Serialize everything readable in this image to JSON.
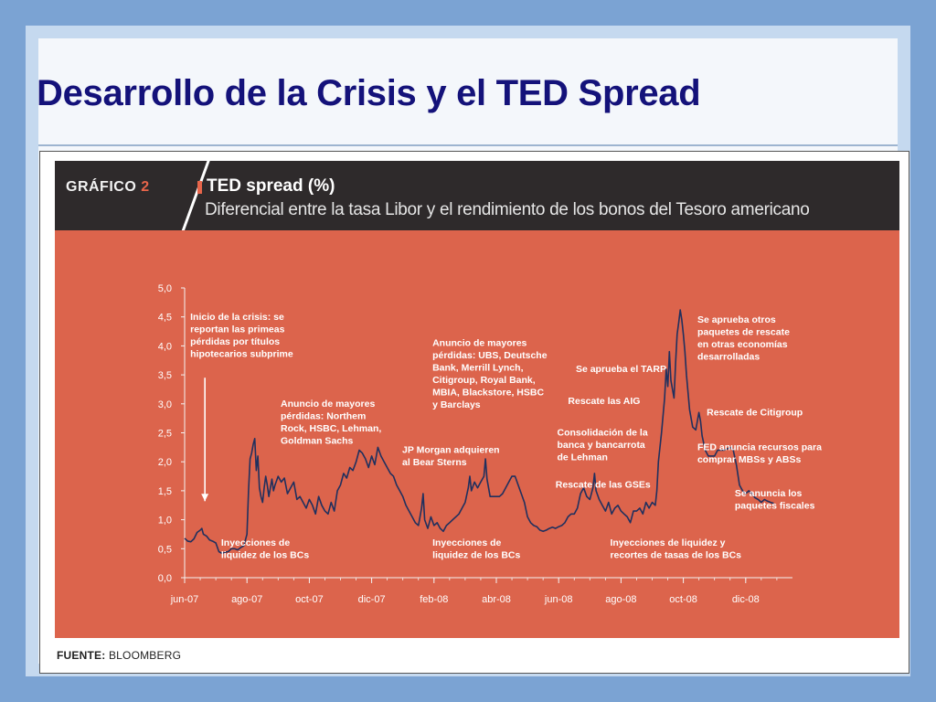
{
  "slide": {
    "title": "Desarrollo de la Crisis y el TED Spread"
  },
  "figure": {
    "label_prefix": "GRÁFICO",
    "label_number": "2",
    "title": "TED spread (%)",
    "subtitle": "Diferencial entre la tasa Libor y el rendimiento de los bonos del Tesoro americano",
    "source_label": "FUENTE:",
    "source_value": "BLOOMBERG"
  },
  "colors": {
    "background": "#7ba3d3",
    "title": "#14127a",
    "plot_bg": "#dc644c",
    "header_bg": "#2e2a2b",
    "line": "#20305e",
    "accent": "#e8654a"
  },
  "chart_data": {
    "type": "line",
    "title": "TED spread (%)",
    "subtitle": "Diferencial entre la tasa Libor y el rendimiento de los bonos del Tesoro americano",
    "xlabel": "",
    "ylabel": "",
    "ylim": [
      0,
      5
    ],
    "yticks": [
      "0,0",
      "0,5",
      "1,0",
      "1,5",
      "2,0",
      "2,5",
      "3,0",
      "3,5",
      "4,0",
      "4,5",
      "5,0"
    ],
    "xticks": [
      {
        "label": "jun-07",
        "m": 0
      },
      {
        "label": "ago-07",
        "m": 2
      },
      {
        "label": "oct-07",
        "m": 4
      },
      {
        "label": "dic-07",
        "m": 6
      },
      {
        "label": "feb-08",
        "m": 8
      },
      {
        "label": "abr-08",
        "m": 10
      },
      {
        "label": "jun-08",
        "m": 12
      },
      {
        "label": "ago-08",
        "m": 14
      },
      {
        "label": "oct-08",
        "m": 16
      },
      {
        "label": "dic-08",
        "m": 18
      }
    ],
    "series": [
      {
        "name": "",
        "points": [
          [
            0.0,
            0.68
          ],
          [
            0.1,
            0.63
          ],
          [
            0.2,
            0.62
          ],
          [
            0.3,
            0.67
          ],
          [
            0.4,
            0.78
          ],
          [
            0.5,
            0.82
          ],
          [
            0.55,
            0.85
          ],
          [
            0.6,
            0.75
          ],
          [
            0.7,
            0.72
          ],
          [
            0.8,
            0.65
          ],
          [
            0.9,
            0.63
          ],
          [
            1.0,
            0.6
          ],
          [
            1.1,
            0.45
          ],
          [
            1.2,
            0.42
          ],
          [
            1.3,
            0.44
          ],
          [
            1.4,
            0.45
          ],
          [
            1.5,
            0.5
          ],
          [
            1.6,
            0.5
          ],
          [
            1.7,
            0.48
          ],
          [
            1.8,
            0.52
          ],
          [
            1.9,
            0.55
          ],
          [
            2.0,
            0.75
          ],
          [
            2.05,
            1.5
          ],
          [
            2.1,
            2.05
          ],
          [
            2.15,
            2.15
          ],
          [
            2.2,
            2.3
          ],
          [
            2.25,
            2.4
          ],
          [
            2.3,
            1.85
          ],
          [
            2.35,
            2.1
          ],
          [
            2.4,
            1.55
          ],
          [
            2.45,
            1.4
          ],
          [
            2.5,
            1.3
          ],
          [
            2.55,
            1.55
          ],
          [
            2.6,
            1.75
          ],
          [
            2.65,
            1.6
          ],
          [
            2.7,
            1.4
          ],
          [
            2.75,
            1.55
          ],
          [
            2.8,
            1.7
          ],
          [
            2.85,
            1.5
          ],
          [
            2.9,
            1.6
          ],
          [
            3.0,
            1.75
          ],
          [
            3.1,
            1.65
          ],
          [
            3.2,
            1.72
          ],
          [
            3.3,
            1.45
          ],
          [
            3.4,
            1.55
          ],
          [
            3.5,
            1.65
          ],
          [
            3.6,
            1.35
          ],
          [
            3.7,
            1.4
          ],
          [
            3.8,
            1.3
          ],
          [
            3.9,
            1.2
          ],
          [
            4.0,
            1.35
          ],
          [
            4.1,
            1.25
          ],
          [
            4.2,
            1.1
          ],
          [
            4.3,
            1.4
          ],
          [
            4.4,
            1.25
          ],
          [
            4.5,
            1.15
          ],
          [
            4.6,
            1.1
          ],
          [
            4.7,
            1.3
          ],
          [
            4.8,
            1.15
          ],
          [
            4.9,
            1.5
          ],
          [
            5.0,
            1.6
          ],
          [
            5.1,
            1.8
          ],
          [
            5.2,
            1.72
          ],
          [
            5.3,
            1.9
          ],
          [
            5.4,
            1.85
          ],
          [
            5.5,
            2.0
          ],
          [
            5.6,
            2.2
          ],
          [
            5.7,
            2.15
          ],
          [
            5.8,
            2.05
          ],
          [
            5.9,
            1.9
          ],
          [
            6.0,
            2.1
          ],
          [
            6.1,
            1.95
          ],
          [
            6.2,
            2.25
          ],
          [
            6.3,
            2.1
          ],
          [
            6.4,
            2.0
          ],
          [
            6.5,
            1.9
          ],
          [
            6.6,
            1.8
          ],
          [
            6.7,
            1.75
          ],
          [
            6.8,
            1.6
          ],
          [
            6.9,
            1.5
          ],
          [
            7.0,
            1.4
          ],
          [
            7.1,
            1.25
          ],
          [
            7.2,
            1.15
          ],
          [
            7.3,
            1.05
          ],
          [
            7.4,
            0.95
          ],
          [
            7.5,
            0.9
          ],
          [
            7.6,
            1.2
          ],
          [
            7.65,
            1.45
          ],
          [
            7.7,
            1.0
          ],
          [
            7.8,
            0.85
          ],
          [
            7.9,
            1.05
          ],
          [
            8.0,
            0.9
          ],
          [
            8.1,
            0.95
          ],
          [
            8.2,
            0.85
          ],
          [
            8.3,
            0.8
          ],
          [
            8.4,
            0.9
          ],
          [
            8.5,
            0.95
          ],
          [
            8.6,
            1.0
          ],
          [
            8.7,
            1.05
          ],
          [
            8.8,
            1.1
          ],
          [
            8.9,
            1.2
          ],
          [
            9.0,
            1.3
          ],
          [
            9.1,
            1.55
          ],
          [
            9.15,
            1.75
          ],
          [
            9.2,
            1.5
          ],
          [
            9.3,
            1.65
          ],
          [
            9.4,
            1.55
          ],
          [
            9.5,
            1.65
          ],
          [
            9.6,
            1.75
          ],
          [
            9.65,
            2.05
          ],
          [
            9.7,
            1.7
          ],
          [
            9.8,
            1.4
          ],
          [
            9.9,
            1.4
          ],
          [
            10.0,
            1.4
          ],
          [
            10.1,
            1.4
          ],
          [
            10.2,
            1.45
          ],
          [
            10.3,
            1.55
          ],
          [
            10.4,
            1.65
          ],
          [
            10.5,
            1.75
          ],
          [
            10.6,
            1.75
          ],
          [
            10.7,
            1.6
          ],
          [
            10.8,
            1.45
          ],
          [
            10.9,
            1.3
          ],
          [
            11.0,
            1.05
          ],
          [
            11.1,
            0.95
          ],
          [
            11.2,
            0.9
          ],
          [
            11.3,
            0.88
          ],
          [
            11.4,
            0.82
          ],
          [
            11.5,
            0.8
          ],
          [
            11.6,
            0.82
          ],
          [
            11.7,
            0.85
          ],
          [
            11.8,
            0.87
          ],
          [
            11.9,
            0.85
          ],
          [
            12.0,
            0.88
          ],
          [
            12.1,
            0.9
          ],
          [
            12.2,
            0.95
          ],
          [
            12.3,
            1.05
          ],
          [
            12.4,
            1.1
          ],
          [
            12.5,
            1.1
          ],
          [
            12.6,
            1.2
          ],
          [
            12.7,
            1.45
          ],
          [
            12.8,
            1.55
          ],
          [
            12.9,
            1.4
          ],
          [
            13.0,
            1.35
          ],
          [
            13.1,
            1.55
          ],
          [
            13.15,
            1.8
          ],
          [
            13.2,
            1.5
          ],
          [
            13.3,
            1.35
          ],
          [
            13.4,
            1.25
          ],
          [
            13.5,
            1.15
          ],
          [
            13.6,
            1.3
          ],
          [
            13.7,
            1.1
          ],
          [
            13.8,
            1.2
          ],
          [
            13.9,
            1.25
          ],
          [
            14.0,
            1.15
          ],
          [
            14.1,
            1.1
          ],
          [
            14.2,
            1.05
          ],
          [
            14.3,
            0.95
          ],
          [
            14.4,
            1.15
          ],
          [
            14.5,
            1.15
          ],
          [
            14.6,
            1.2
          ],
          [
            14.7,
            1.1
          ],
          [
            14.8,
            1.3
          ],
          [
            14.9,
            1.2
          ],
          [
            15.0,
            1.3
          ],
          [
            15.1,
            1.25
          ],
          [
            15.15,
            1.5
          ],
          [
            15.2,
            2.0
          ],
          [
            15.3,
            2.5
          ],
          [
            15.4,
            3.1
          ],
          [
            15.45,
            3.6
          ],
          [
            15.5,
            3.3
          ],
          [
            15.55,
            3.9
          ],
          [
            15.6,
            3.4
          ],
          [
            15.7,
            3.1
          ],
          [
            15.75,
            3.7
          ],
          [
            15.8,
            4.2
          ],
          [
            15.85,
            4.4
          ],
          [
            15.9,
            4.62
          ],
          [
            15.95,
            4.45
          ],
          [
            16.0,
            4.2
          ],
          [
            16.05,
            3.9
          ],
          [
            16.1,
            3.5
          ],
          [
            16.15,
            3.2
          ],
          [
            16.2,
            2.9
          ],
          [
            16.3,
            2.6
          ],
          [
            16.4,
            2.55
          ],
          [
            16.5,
            2.85
          ],
          [
            16.55,
            2.7
          ],
          [
            16.6,
            2.45
          ],
          [
            16.7,
            2.2
          ],
          [
            16.8,
            2.1
          ],
          [
            16.9,
            2.1
          ],
          [
            17.0,
            2.1
          ],
          [
            17.1,
            2.2
          ],
          [
            17.2,
            2.2
          ],
          [
            17.3,
            2.2
          ],
          [
            17.4,
            2.22
          ],
          [
            17.5,
            2.25
          ],
          [
            17.6,
            2.2
          ],
          [
            17.7,
            1.95
          ],
          [
            17.8,
            1.6
          ],
          [
            17.9,
            1.5
          ],
          [
            18.0,
            1.45
          ],
          [
            18.1,
            1.5
          ],
          [
            18.2,
            1.45
          ],
          [
            18.3,
            1.38
          ],
          [
            18.4,
            1.35
          ],
          [
            18.5,
            1.3
          ],
          [
            18.6,
            1.35
          ],
          [
            18.7,
            1.32
          ],
          [
            18.8,
            1.3
          ],
          [
            18.9,
            1.28
          ]
        ]
      }
    ],
    "annotations": [
      {
        "lines": [
          "Inicio de la crisis: se",
          "reportan las primeas",
          "pérdidas por títulos",
          "hipotecarios subprime"
        ],
        "m": 0.18,
        "v": 4.45,
        "arrow": true
      },
      {
        "lines": [
          "Anuncio de mayores",
          "pérdidas: Northem",
          "Rock, HSBC, Lehman,",
          "Goldman Sachs"
        ],
        "m": 3.08,
        "v": 2.95
      },
      {
        "lines": [
          "Inyecciones de",
          "liquidez de los BCs"
        ],
        "m": 1.17,
        "v": 0.55
      },
      {
        "lines": [
          "JP Morgan adquieren",
          "al Bear Sterns"
        ],
        "m": 6.98,
        "v": 2.15
      },
      {
        "lines": [
          "Anuncio de mayores",
          "pérdidas: UBS, Deutsche",
          "Bank, Merrill Lynch,",
          "Citigroup, Royal Bank,",
          "MBIA, Blackstore, HSBC",
          "y Barclays"
        ],
        "m": 7.95,
        "v": 4.0
      },
      {
        "lines": [
          "Inyecciones de",
          "liquidez de los BCs"
        ],
        "m": 7.95,
        "v": 0.55
      },
      {
        "lines": [
          "Se aprueba el TARP"
        ],
        "m": 12.55,
        "v": 3.55
      },
      {
        "lines": [
          "Rescate las AIG"
        ],
        "m": 12.3,
        "v": 3.0
      },
      {
        "lines": [
          "Consolidación de la",
          "banca y bancarrota",
          "de Lehman"
        ],
        "m": 11.95,
        "v": 2.45
      },
      {
        "lines": [
          "Rescate de las GSEs"
        ],
        "m": 11.9,
        "v": 1.55
      },
      {
        "lines": [
          "Inyecciones de liquidez y",
          "recortes de tasas de los BCs"
        ],
        "m": 13.65,
        "v": 0.55
      },
      {
        "lines": [
          "Se aprueba otros",
          "paquetes de rescate",
          "en otras economías",
          "desarrolladas"
        ],
        "m": 16.45,
        "v": 4.4
      },
      {
        "lines": [
          "Rescate de Citigroup"
        ],
        "m": 16.75,
        "v": 2.8
      },
      {
        "lines": [
          "FED anuncia recursos para",
          "comprar MBSs y ABSs"
        ],
        "m": 16.45,
        "v": 2.2
      },
      {
        "lines": [
          "Se anuncia los",
          "paquetes fiscales"
        ],
        "m": 17.65,
        "v": 1.4
      }
    ],
    "grid": false,
    "legend": "none"
  }
}
